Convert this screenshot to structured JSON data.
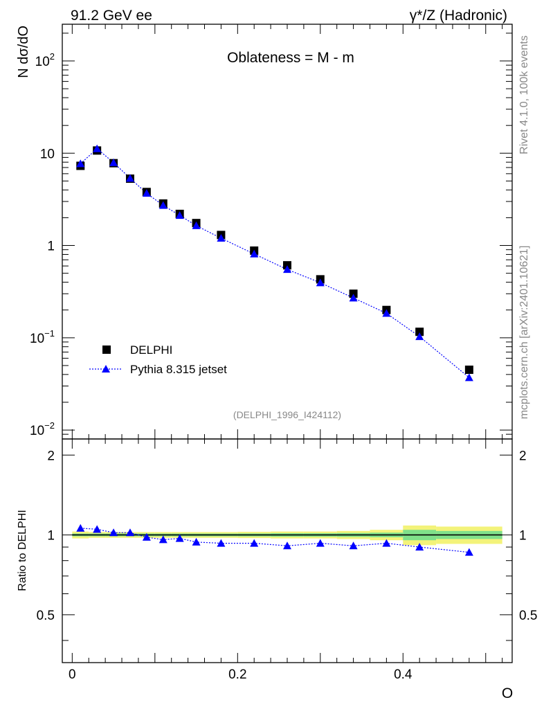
{
  "header": {
    "left": "91.2 GeV ee",
    "right": "γ*/Z (Hadronic)"
  },
  "side_text": {
    "rivet": "Rivet 4.1.0,  100k events",
    "mcplots": "mcplots.cern.ch [arXiv:2401.10621]"
  },
  "chart_data": {
    "type": "scatter",
    "title": "Oblateness = M - m",
    "analysis_tag": "(DELPHI_1996_I424112)",
    "xlabel": "O",
    "ylabel": "N  dσ/dO",
    "ratio_ylabel": "Ratio to DELPHI",
    "xlim": [
      -0.012,
      0.532
    ],
    "ylim_log": [
      0.008,
      250
    ],
    "ratio_ylim": [
      0.33,
      2.3
    ],
    "x_ticks": [
      0,
      0.2,
      0.4
    ],
    "x_tick_labels": [
      "0",
      "0.2",
      "0.4"
    ],
    "y_ticks": [
      {
        "value": 100,
        "base": "10",
        "exp": "2"
      },
      {
        "value": 10,
        "base": "10",
        "exp": ""
      },
      {
        "value": 1,
        "base": "1",
        "exp": ""
      },
      {
        "value": 0.1,
        "base": "10",
        "exp": "−1"
      },
      {
        "value": 0.01,
        "base": "10",
        "exp": "−2"
      }
    ],
    "ratio_ticks": [
      0.5,
      1,
      2
    ],
    "ratio_tick_labels": [
      "0.5",
      "1",
      "2"
    ],
    "legend": {
      "position": "bottom-left",
      "entries": [
        "DELPHI",
        "Pythia 8.315 jetset"
      ]
    },
    "x": [
      0.01,
      0.03,
      0.05,
      0.07,
      0.09,
      0.11,
      0.13,
      0.15,
      0.18,
      0.22,
      0.26,
      0.3,
      0.34,
      0.38,
      0.42,
      0.48
    ],
    "bins": [
      [
        0.0,
        0.02
      ],
      [
        0.02,
        0.04
      ],
      [
        0.04,
        0.06
      ],
      [
        0.06,
        0.08
      ],
      [
        0.08,
        0.1
      ],
      [
        0.1,
        0.12
      ],
      [
        0.12,
        0.14
      ],
      [
        0.14,
        0.16
      ],
      [
        0.16,
        0.2
      ],
      [
        0.2,
        0.24
      ],
      [
        0.24,
        0.28
      ],
      [
        0.28,
        0.32
      ],
      [
        0.32,
        0.36
      ],
      [
        0.36,
        0.4
      ],
      [
        0.4,
        0.44
      ],
      [
        0.44,
        0.52
      ]
    ],
    "series": [
      {
        "name": "DELPHI",
        "marker": "square",
        "color": "#000000",
        "values": [
          7.3,
          10.7,
          7.8,
          5.3,
          3.8,
          2.85,
          2.2,
          1.75,
          1.3,
          0.88,
          0.61,
          0.43,
          0.3,
          0.2,
          0.116,
          0.045
        ]
      },
      {
        "name": "Pythia 8.315 jetset",
        "marker": "triangle",
        "color": "#0000ff",
        "values": [
          7.7,
          11.2,
          7.9,
          5.35,
          3.68,
          2.72,
          2.12,
          1.64,
          1.2,
          0.81,
          0.55,
          0.395,
          0.27,
          0.184,
          0.103,
          0.037
        ]
      }
    ],
    "ratio_values": [
      1.06,
      1.05,
      1.02,
      1.02,
      0.98,
      0.96,
      0.97,
      0.94,
      0.93,
      0.93,
      0.91,
      0.93,
      0.91,
      0.93,
      0.9,
      0.86
    ],
    "ratio_band_stat": [
      0.012,
      0.012,
      0.012,
      0.012,
      0.012,
      0.012,
      0.012,
      0.012,
      0.012,
      0.013,
      0.015,
      0.015,
      0.017,
      0.02,
      0.045,
      0.035
    ],
    "ratio_band_total": [
      0.03,
      0.025,
      0.025,
      0.025,
      0.025,
      0.025,
      0.025,
      0.025,
      0.025,
      0.027,
      0.03,
      0.03,
      0.035,
      0.045,
      0.085,
      0.075
    ],
    "colors": {
      "band_inner": "#7fe08a",
      "band_outer": "#f3f37a",
      "data": "#000000",
      "mc": "#0000ff"
    }
  }
}
